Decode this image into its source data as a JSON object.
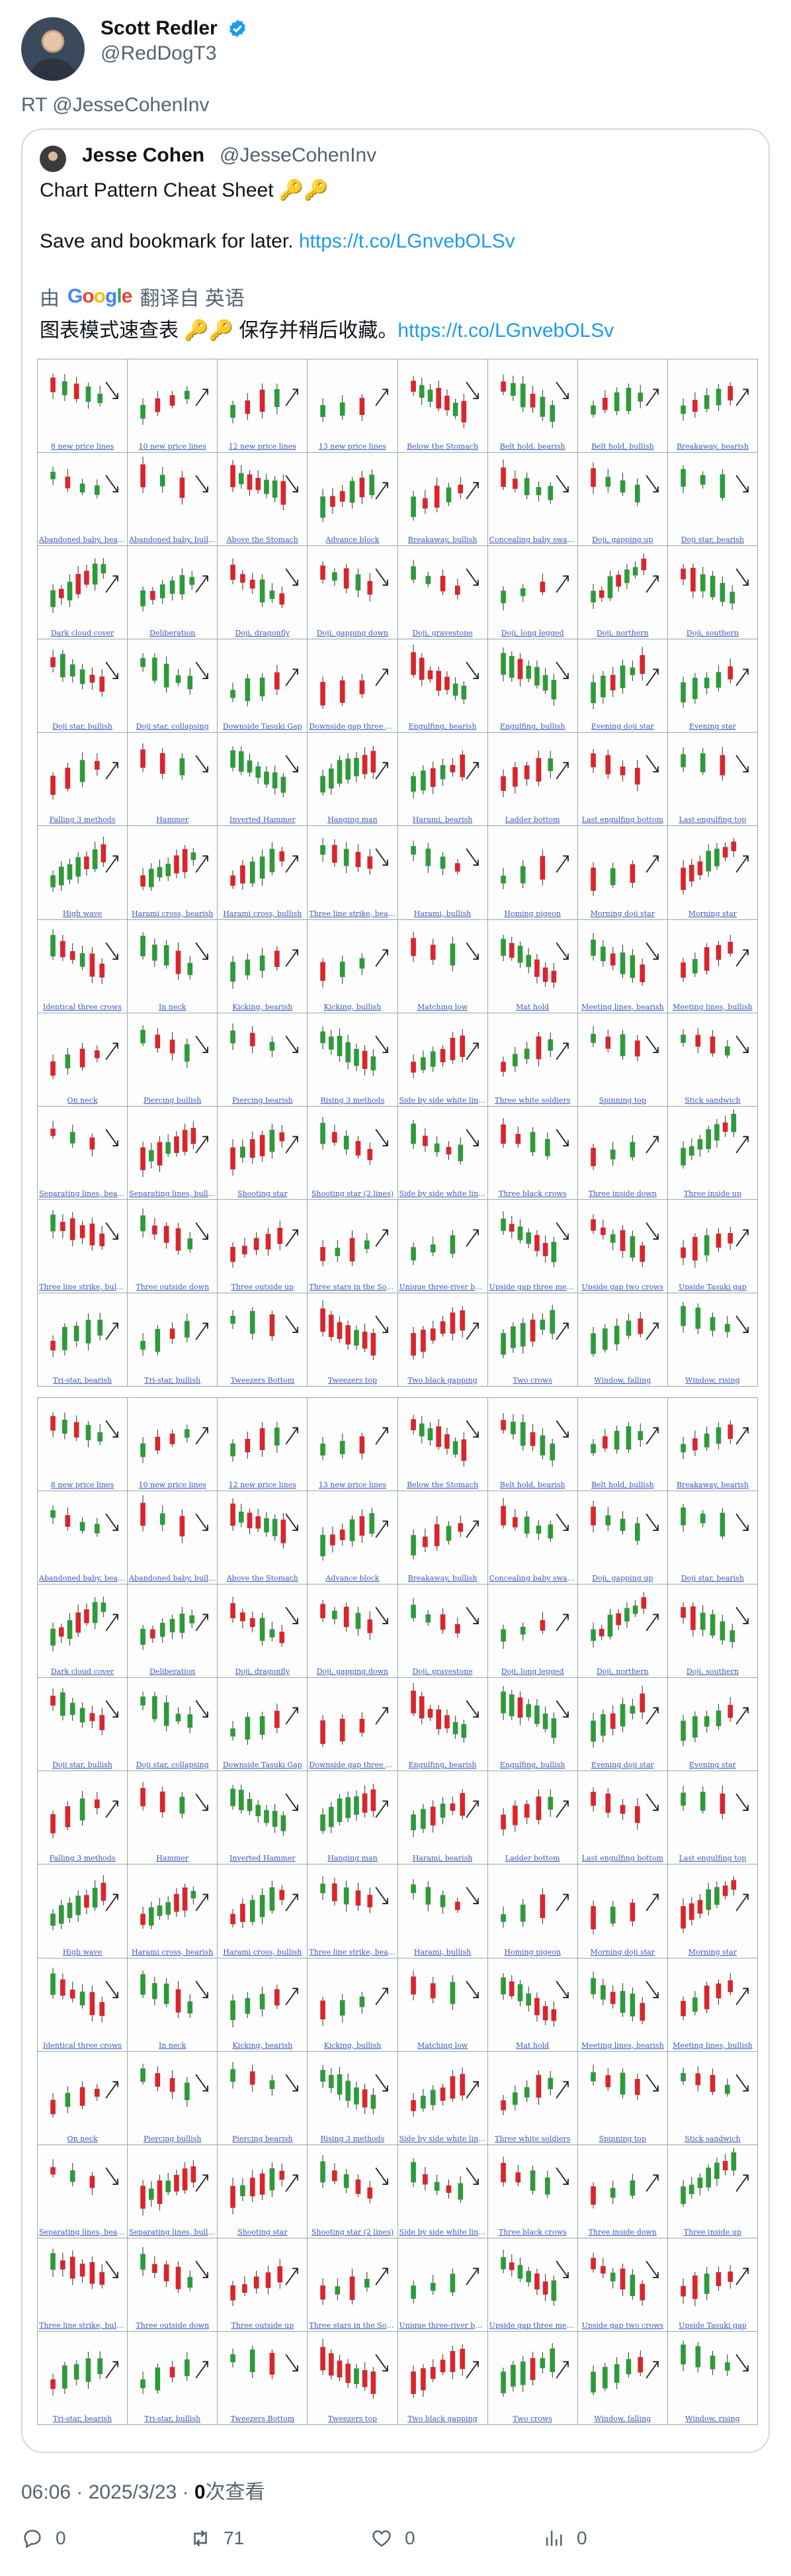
{
  "tweet": {
    "author_name": "Scott Redler",
    "author_handle": "@RedDogT3",
    "retweet_line": "RT @JesseCohenInv",
    "timestamp": "06:06 · 2025/3/23 · ",
    "views_count": "0",
    "views_label": "次查看"
  },
  "quote": {
    "name": "Jesse Cohen",
    "handle": "@JesseCohenInv",
    "line1": "Chart Pattern Cheat Sheet 🔑🔑",
    "line2_text": "Save and bookmark for later. ",
    "line2_link": "https://t.co/LGnvebOLSv",
    "translated_prefix": "由",
    "translated_suffix": "翻译自 英语",
    "translated_text": "图表模式速查表 🔑🔑 保存并稍后收藏。",
    "translated_link": "https://t.co/LGnvebOLSv"
  },
  "cheat_sheet": {
    "patterns": [
      "8 new price lines",
      "10 new price lines",
      "12 new price lines",
      "13 new price lines",
      "Below the Stomach",
      "Belt hold, bearish",
      "Belt hold, bullish",
      "Breakaway, bearish",
      "Abandoned baby, bearish",
      "Abandoned baby, bullish",
      "Above the Stomach",
      "Advance block",
      "Breakaway, bullish",
      "Concealing baby swallow",
      "Doji, gapping up",
      "Doji star, bearish",
      "Dark cloud cover",
      "Deliberation",
      "Doji, dragonfly",
      "Doji, gapping down",
      "Doji, gravestone",
      "Doji, long legged",
      "Doji, northern",
      "Doji, southern",
      "Doji star, bullish",
      "Doji star, collapsing",
      "Downside Tasuki Gap",
      "Downside gap three methods",
      "Engulfing, bearish",
      "Engulfing, bullish",
      "Evening doji star",
      "Evening star",
      "Falling 3 methods",
      "Hammer",
      "Inverted Hammer",
      "Hanging man",
      "Harami, bearish",
      "Ladder bottom",
      "Last engulfing bottom",
      "Last engulfing top",
      "High wave",
      "Harami cross, bearish",
      "Harami cross, bullish",
      "Three line strike, bearish",
      "Harami, bullish",
      "Homing pigeon",
      "Morning doji star",
      "Morning star",
      "Identical three crows",
      "In neck",
      "Kicking, bearish",
      "Kicking, bullish",
      "Matching low",
      "Mat hold",
      "Meeting lines, bearish",
      "Meeting lines, bullish",
      "On neck",
      "Piercing bullish",
      "Piercing bearish",
      "Rising 3 methods",
      "Side by side white lines, bullish",
      "Three white soldiers",
      "Spinning top",
      "Stick sandwich",
      "Separating lines, bearish",
      "Separating lines, bullish",
      "Shooting star",
      "Shooting star (2 lines)",
      "Side by side white lines, bearish",
      "Three black crows",
      "Three inside down",
      "Three inside up",
      "Three line strike, bullish",
      "Three outside down",
      "Three outside up",
      "Three stars in the South",
      "Unique three-river bottom",
      "Upside gap three methods",
      "Upside gap two crows",
      "Upside Tasuki gap",
      "Tri-star, bearish",
      "Tri-star, bullish",
      "Tweezers Bottom",
      "Tweezers top",
      "Two black gapping",
      "Two crows",
      "Window, falling",
      "Window, rising"
    ],
    "colors": {
      "bull": "#2e9a3a",
      "bear": "#d8262c",
      "arrow": "#222222",
      "highlight": "#8a3fa0"
    }
  },
  "actions": {
    "reply_count": "0",
    "retweet_count": "71",
    "like_count": "0",
    "views_count": "0"
  },
  "icons": {
    "verified": "verified-badge-icon",
    "reply": "reply-icon",
    "retweet": "retweet-icon",
    "like": "heart-icon",
    "views": "bar-chart-icon"
  }
}
